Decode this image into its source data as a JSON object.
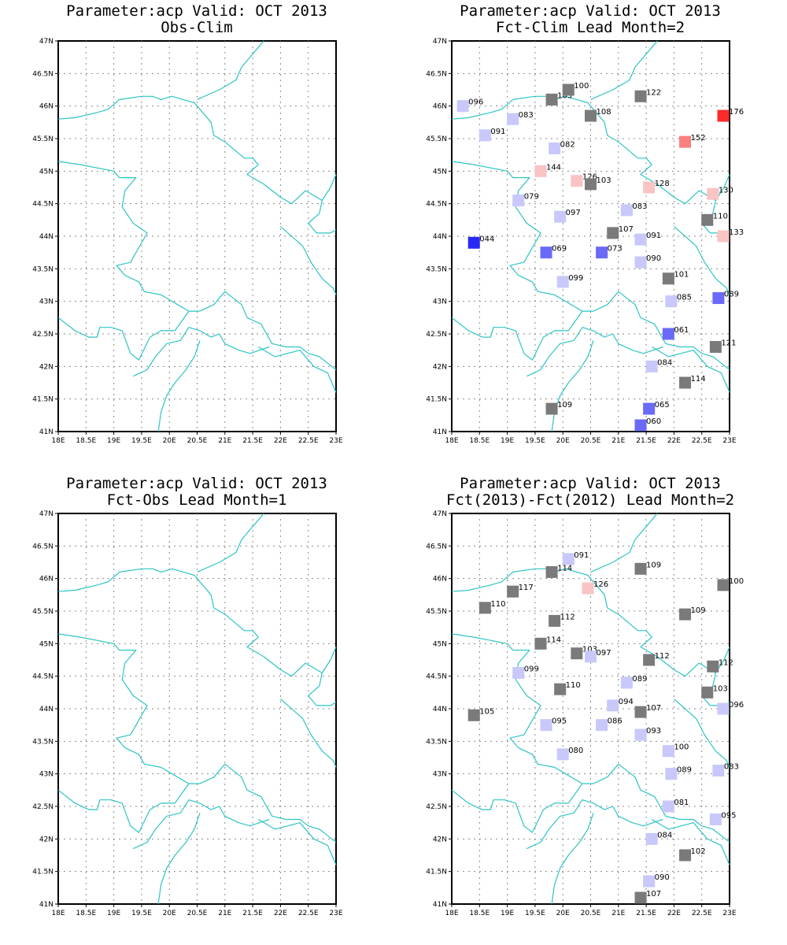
{
  "panels": [
    {
      "title_line1": "Parameter:acp Valid: OCT 2013",
      "title_line2": "Obs-Clim",
      "stations": []
    },
    {
      "title_line1": "Parameter:acp Valid: OCT 2013",
      "title_line2": "Fct-Clim Lead Month=2",
      "stations": [
        {
          "lon": 18.2,
          "lat": 46.0,
          "label": "096",
          "color": "#c8c8fa"
        },
        {
          "lon": 19.8,
          "lat": 46.1,
          "label": "105",
          "color": "#7a7a7a"
        },
        {
          "lon": 20.1,
          "lat": 46.25,
          "label": "100",
          "color": "#7a7a7a"
        },
        {
          "lon": 21.4,
          "lat": 46.15,
          "label": "122",
          "color": "#7a7a7a"
        },
        {
          "lon": 20.5,
          "lat": 45.85,
          "label": "108",
          "color": "#7a7a7a"
        },
        {
          "lon": 23.0,
          "lat": 45.85,
          "label": "176",
          "color": "#ff2a2a"
        },
        {
          "lon": 19.1,
          "lat": 45.8,
          "label": "083",
          "color": "#c8c8fa"
        },
        {
          "lon": 18.6,
          "lat": 45.55,
          "label": "091",
          "color": "#c8c8fa"
        },
        {
          "lon": 19.85,
          "lat": 45.35,
          "label": "082",
          "color": "#c8c8fa"
        },
        {
          "lon": 22.2,
          "lat": 45.45,
          "label": "152",
          "color": "#fa8080"
        },
        {
          "lon": 19.6,
          "lat": 45.0,
          "label": "144",
          "color": "#f8c4c4"
        },
        {
          "lon": 20.25,
          "lat": 44.85,
          "label": "126",
          "color": "#f8c4c4"
        },
        {
          "lon": 20.5,
          "lat": 44.8,
          "label": "103",
          "color": "#7a7a7a"
        },
        {
          "lon": 21.55,
          "lat": 44.75,
          "label": "128",
          "color": "#f8c4c4"
        },
        {
          "lon": 22.7,
          "lat": 44.65,
          "label": "130",
          "color": "#f8c4c4"
        },
        {
          "lon": 19.2,
          "lat": 44.55,
          "label": "079",
          "color": "#c8c8fa"
        },
        {
          "lon": 21.15,
          "lat": 44.4,
          "label": "083",
          "color": "#c8c8fa"
        },
        {
          "lon": 19.95,
          "lat": 44.3,
          "label": "097",
          "color": "#c8c8fa"
        },
        {
          "lon": 22.6,
          "lat": 44.25,
          "label": "110",
          "color": "#7a7a7a"
        },
        {
          "lon": 20.9,
          "lat": 44.05,
          "label": "107",
          "color": "#7a7a7a"
        },
        {
          "lon": 21.4,
          "lat": 43.95,
          "label": "091",
          "color": "#c8c8fa"
        },
        {
          "lon": 22.9,
          "lat": 44.0,
          "label": "133",
          "color": "#f8c4c4"
        },
        {
          "lon": 18.4,
          "lat": 43.9,
          "label": "044",
          "color": "#2828f5"
        },
        {
          "lon": 19.7,
          "lat": 43.75,
          "label": "069",
          "color": "#6a6af8"
        },
        {
          "lon": 20.7,
          "lat": 43.75,
          "label": "073",
          "color": "#6a6af8"
        },
        {
          "lon": 21.4,
          "lat": 43.6,
          "label": "090",
          "color": "#c8c8fa"
        },
        {
          "lon": 21.9,
          "lat": 43.35,
          "label": "101",
          "color": "#7a7a7a"
        },
        {
          "lon": 20.0,
          "lat": 43.3,
          "label": "099",
          "color": "#c8c8fa"
        },
        {
          "lon": 21.95,
          "lat": 43.0,
          "label": "085",
          "color": "#c8c8fa"
        },
        {
          "lon": 22.8,
          "lat": 43.05,
          "label": "089",
          "color": "#6a6af8"
        },
        {
          "lon": 21.9,
          "lat": 42.5,
          "label": "061",
          "color": "#6a6af8"
        },
        {
          "lon": 22.75,
          "lat": 42.3,
          "label": "121",
          "color": "#7a7a7a"
        },
        {
          "lon": 21.6,
          "lat": 42.0,
          "label": "084",
          "color": "#c8c8fa"
        },
        {
          "lon": 22.2,
          "lat": 41.75,
          "label": "114",
          "color": "#7a7a7a"
        },
        {
          "lon": 19.8,
          "lat": 41.35,
          "label": "109",
          "color": "#7a7a7a"
        },
        {
          "lon": 21.55,
          "lat": 41.35,
          "label": "065",
          "color": "#6a6af8"
        },
        {
          "lon": 21.4,
          "lat": 41.05,
          "label": "060",
          "color": "#6a6af8"
        }
      ]
    },
    {
      "title_line1": "Parameter:acp Valid: OCT 2013",
      "title_line2": "Fct-Obs Lead Month=1",
      "stations": []
    },
    {
      "title_line1": "Parameter:acp Valid: OCT 2013",
      "title_line2": "Fct(2013)-Fct(2012) Lead Month=2",
      "stations": [
        {
          "lon": 20.1,
          "lat": 46.3,
          "label": "091",
          "color": "#c8c8fa"
        },
        {
          "lon": 19.8,
          "lat": 46.1,
          "label": "114",
          "color": "#7a7a7a"
        },
        {
          "lon": 21.4,
          "lat": 46.15,
          "label": "109",
          "color": "#7a7a7a"
        },
        {
          "lon": 20.45,
          "lat": 45.85,
          "label": "126",
          "color": "#f8c4c4"
        },
        {
          "lon": 23.0,
          "lat": 45.9,
          "label": "100",
          "color": "#7a7a7a"
        },
        {
          "lon": 19.1,
          "lat": 45.8,
          "label": "117",
          "color": "#7a7a7a"
        },
        {
          "lon": 18.6,
          "lat": 45.55,
          "label": "110",
          "color": "#7a7a7a"
        },
        {
          "lon": 22.2,
          "lat": 45.45,
          "label": "109",
          "color": "#7a7a7a"
        },
        {
          "lon": 19.85,
          "lat": 45.35,
          "label": "112",
          "color": "#7a7a7a"
        },
        {
          "lon": 19.6,
          "lat": 45.0,
          "label": "114",
          "color": "#7a7a7a"
        },
        {
          "lon": 20.25,
          "lat": 44.85,
          "label": "103",
          "color": "#7a7a7a"
        },
        {
          "lon": 20.5,
          "lat": 44.8,
          "label": "097",
          "color": "#c8c8fa"
        },
        {
          "lon": 21.55,
          "lat": 44.75,
          "label": "112",
          "color": "#7a7a7a"
        },
        {
          "lon": 22.7,
          "lat": 44.65,
          "label": "112",
          "color": "#7a7a7a"
        },
        {
          "lon": 19.2,
          "lat": 44.55,
          "label": "099",
          "color": "#c8c8fa"
        },
        {
          "lon": 21.15,
          "lat": 44.4,
          "label": "089",
          "color": "#c8c8fa"
        },
        {
          "lon": 19.95,
          "lat": 44.3,
          "label": "110",
          "color": "#7a7a7a"
        },
        {
          "lon": 22.6,
          "lat": 44.25,
          "label": "103",
          "color": "#7a7a7a"
        },
        {
          "lon": 20.9,
          "lat": 44.05,
          "label": "094",
          "color": "#c8c8fa"
        },
        {
          "lon": 21.4,
          "lat": 43.95,
          "label": "107",
          "color": "#7a7a7a"
        },
        {
          "lon": 22.9,
          "lat": 44.0,
          "label": "096",
          "color": "#c8c8fa"
        },
        {
          "lon": 18.4,
          "lat": 43.9,
          "label": "105",
          "color": "#7a7a7a"
        },
        {
          "lon": 19.7,
          "lat": 43.75,
          "label": "095",
          "color": "#c8c8fa"
        },
        {
          "lon": 20.7,
          "lat": 43.75,
          "label": "086",
          "color": "#c8c8fa"
        },
        {
          "lon": 21.4,
          "lat": 43.6,
          "label": "093",
          "color": "#c8c8fa"
        },
        {
          "lon": 21.9,
          "lat": 43.35,
          "label": "100",
          "color": "#c8c8fa"
        },
        {
          "lon": 20.0,
          "lat": 43.3,
          "label": "080",
          "color": "#c8c8fa"
        },
        {
          "lon": 21.95,
          "lat": 43.0,
          "label": "089",
          "color": "#c8c8fa"
        },
        {
          "lon": 22.8,
          "lat": 43.05,
          "label": "083",
          "color": "#c8c8fa"
        },
        {
          "lon": 21.9,
          "lat": 42.5,
          "label": "081",
          "color": "#c8c8fa"
        },
        {
          "lon": 22.75,
          "lat": 42.3,
          "label": "095",
          "color": "#c8c8fa"
        },
        {
          "lon": 21.6,
          "lat": 42.0,
          "label": "084",
          "color": "#c8c8fa"
        },
        {
          "lon": 22.2,
          "lat": 41.75,
          "label": "102",
          "color": "#7a7a7a"
        },
        {
          "lon": 21.55,
          "lat": 41.35,
          "label": "090",
          "color": "#c8c8fa"
        },
        {
          "lon": 21.4,
          "lat": 41.05,
          "label": "107",
          "color": "#7a7a7a"
        }
      ]
    }
  ],
  "axes": {
    "lon_labels": [
      "18E",
      "18.5E",
      "19E",
      "19.5E",
      "20E",
      "20.5E",
      "21E",
      "21.5E",
      "22E",
      "22.5E",
      "23E"
    ],
    "lat_labels": [
      "41N",
      "41.5N",
      "42N",
      "42.5N",
      "43N",
      "43.5N",
      "44N",
      "44.5N",
      "45N",
      "45.5N",
      "46N",
      "46.5N",
      "47N"
    ]
  },
  "colors": {
    "border_line": "#2ec4c4",
    "grid_line": "#8a8a8a"
  }
}
